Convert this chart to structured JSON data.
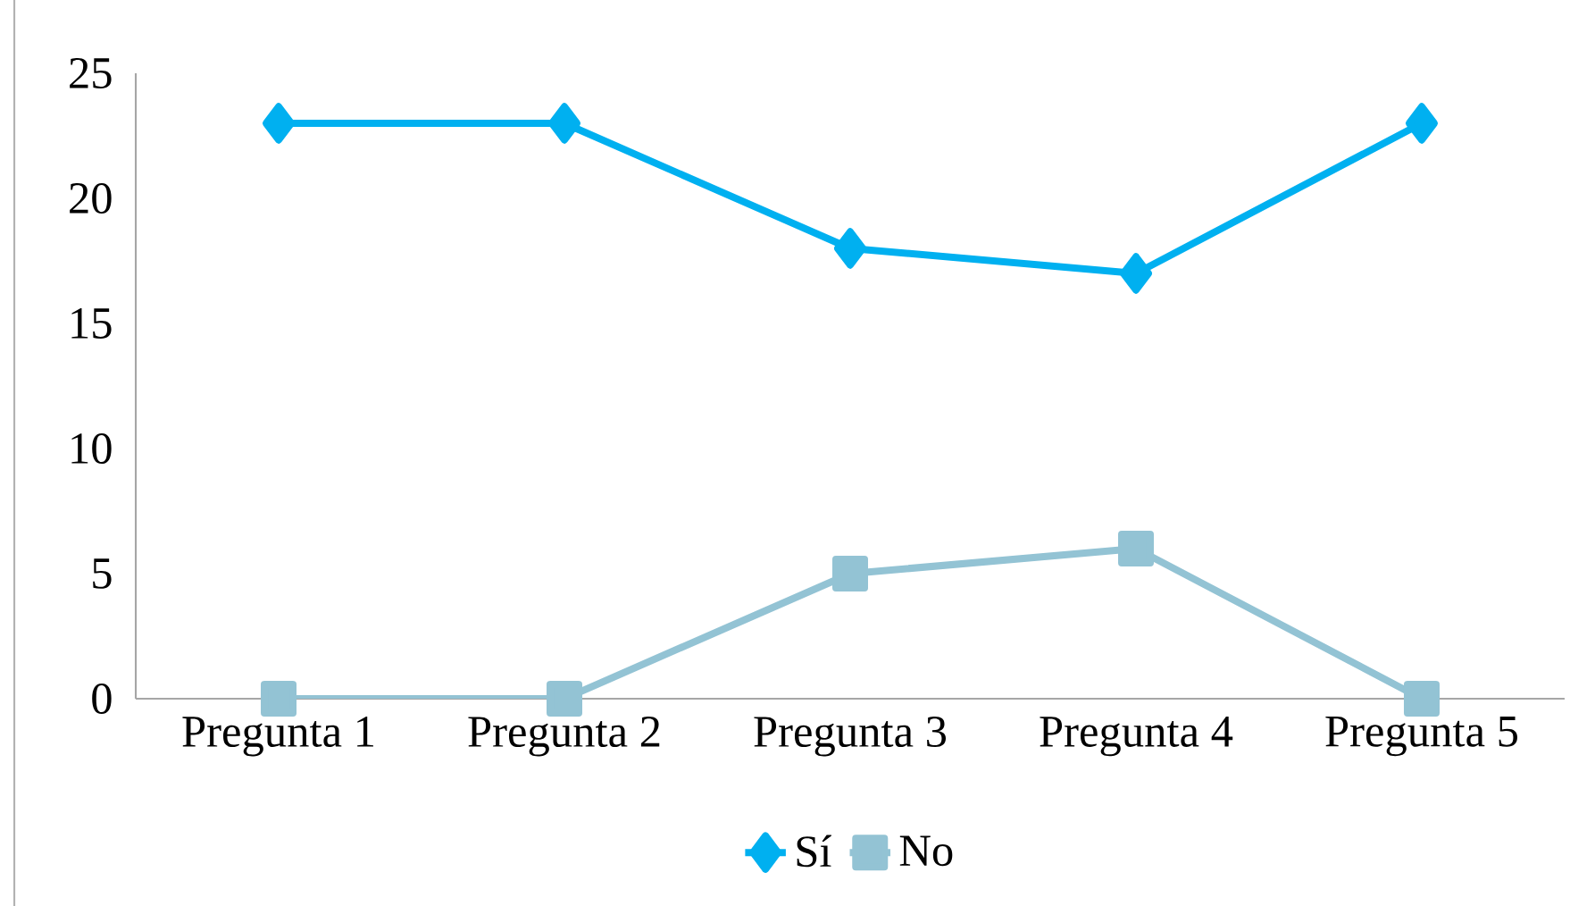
{
  "chart_data": {
    "type": "line",
    "categories": [
      "Pregunta 1",
      "Pregunta 2",
      "Pregunta 3",
      "Pregunta 4",
      "Pregunta 5"
    ],
    "series": [
      {
        "name": "Sí",
        "color": "#00b0f0",
        "values": [
          23,
          23,
          18,
          17,
          23
        ],
        "marker": "diamond"
      },
      {
        "name": "No",
        "color": "#93c3d4",
        "values": [
          0,
          0,
          5,
          6,
          0
        ],
        "marker": "square"
      }
    ],
    "ylim": [
      0,
      25
    ],
    "yticks": [
      0,
      5,
      10,
      15,
      20,
      25
    ],
    "grid": false,
    "legend": "bottom",
    "line_style": "solid"
  }
}
